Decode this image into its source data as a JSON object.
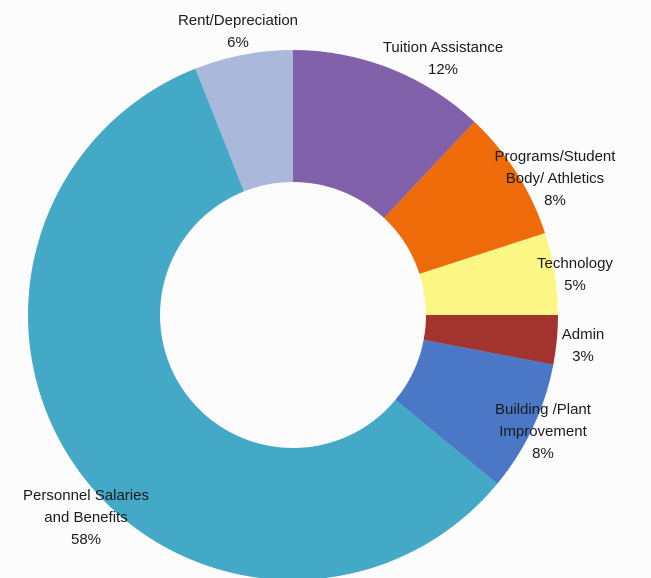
{
  "chart_data": {
    "type": "pie",
    "variant": "donut",
    "title": "",
    "slices": [
      {
        "label_lines": [
          "Tuition Assistance"
        ],
        "value": 12,
        "value_label": "12%",
        "color": "#8061aa"
      },
      {
        "label_lines": [
          "Programs/Student",
          "Body/ Athletics"
        ],
        "value": 8,
        "value_label": "8%",
        "color": "#ef6b09"
      },
      {
        "label_lines": [
          "Technology"
        ],
        "value": 5,
        "value_label": "5%",
        "color": "#fcf684"
      },
      {
        "label_lines": [
          "Admin"
        ],
        "value": 3,
        "value_label": "3%",
        "color": "#a2332e"
      },
      {
        "label_lines": [
          "Building /Plant",
          "Improvement"
        ],
        "value": 8,
        "value_label": "8%",
        "color": "#4a78c6"
      },
      {
        "label_lines": [
          "Personnel Salaries",
          "and Benefits"
        ],
        "value": 58,
        "value_label": "58%",
        "color": "#43a9c7"
      },
      {
        "label_lines": [
          "Rent/Depreciation"
        ],
        "value": 6,
        "value_label": "6%",
        "color": "#a9b8db"
      }
    ],
    "legend": "none",
    "data_labels": "outside"
  }
}
